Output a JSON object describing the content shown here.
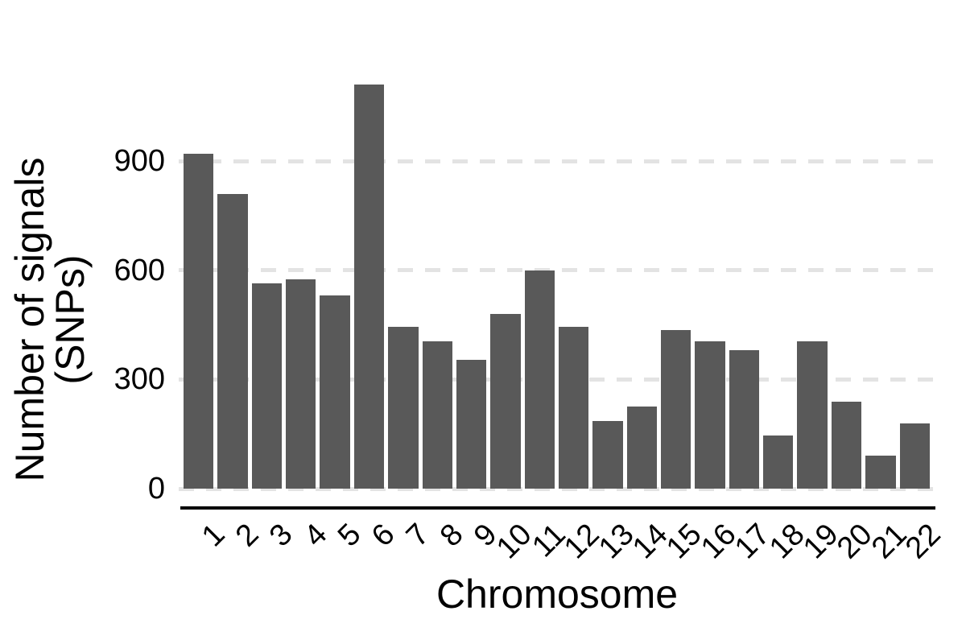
{
  "chart_data": {
    "type": "bar",
    "title": "",
    "xlabel": "Chromosome",
    "ylabel": "Number of signals (SNPs)",
    "ylabel_lines": [
      "Number of signals",
      "(SNPs)"
    ],
    "categories": [
      "1",
      "2",
      "3",
      "4",
      "5",
      "6",
      "7",
      "8",
      "9",
      "10",
      "11",
      "12",
      "13",
      "14",
      "15",
      "16",
      "17",
      "18",
      "19",
      "20",
      "21",
      "22"
    ],
    "values": [
      920,
      810,
      565,
      575,
      530,
      1110,
      445,
      405,
      355,
      480,
      600,
      445,
      185,
      225,
      435,
      405,
      380,
      145,
      405,
      240,
      90,
      180
    ],
    "yticks": [
      0,
      300,
      600,
      900
    ],
    "ylim": [
      0,
      1155
    ],
    "grid": "dashed-horizontal",
    "legend": "none",
    "bar_color": "#595959",
    "gridline_color": "#e3e3e3",
    "axis_color": "#000000",
    "text_color": "#000000",
    "background": "#ffffff"
  }
}
